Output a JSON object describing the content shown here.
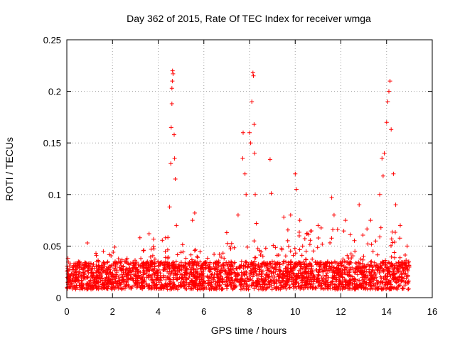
{
  "chart_data": {
    "type": "scatter",
    "title": "Day 362 of 2015, Rate Of TEC Index for receiver wmga",
    "xlabel": "GPS time / hours",
    "ylabel": "ROTI / TECUs",
    "xlim": [
      0,
      16
    ],
    "ylim": [
      0,
      0.25
    ],
    "grid": true,
    "marker": "+",
    "marker_color": "#ff0000",
    "x_ticks": [
      {
        "value": 0,
        "label": "0"
      },
      {
        "value": 2,
        "label": "2"
      },
      {
        "value": 4,
        "label": "4"
      },
      {
        "value": 6,
        "label": "6"
      },
      {
        "value": 8,
        "label": "8"
      },
      {
        "value": 10,
        "label": "10"
      },
      {
        "value": 12,
        "label": "12"
      },
      {
        "value": 14,
        "label": "14"
      },
      {
        "value": 16,
        "label": "16"
      }
    ],
    "y_ticks": [
      {
        "value": 0,
        "label": "0"
      },
      {
        "value": 0.05,
        "label": "0.05"
      },
      {
        "value": 0.1,
        "label": "0.1"
      },
      {
        "value": 0.15,
        "label": "0.15"
      },
      {
        "value": 0.2,
        "label": "0.2"
      },
      {
        "value": 0.25,
        "label": "0.25"
      }
    ],
    "x_range_data": [
      0,
      15.0
    ],
    "baseline_band": [
      0.008,
      0.035
    ],
    "series": [
      {
        "name": "ROTI",
        "points": [
          [
            0.05,
            0.038
          ],
          [
            0.9,
            0.053
          ],
          [
            1.6,
            0.045
          ],
          [
            2.1,
            0.049
          ],
          [
            3.2,
            0.058
          ],
          [
            3.6,
            0.062
          ],
          [
            4.5,
            0.088
          ],
          [
            4.55,
            0.13
          ],
          [
            4.57,
            0.165
          ],
          [
            4.6,
            0.188
          ],
          [
            4.6,
            0.203
          ],
          [
            4.62,
            0.21
          ],
          [
            4.63,
            0.22
          ],
          [
            4.65,
            0.217
          ],
          [
            4.7,
            0.158
          ],
          [
            4.72,
            0.135
          ],
          [
            4.75,
            0.115
          ],
          [
            4.8,
            0.07
          ],
          [
            5.5,
            0.075
          ],
          [
            5.6,
            0.082
          ],
          [
            7.0,
            0.063
          ],
          [
            7.5,
            0.08
          ],
          [
            7.7,
            0.135
          ],
          [
            7.72,
            0.16
          ],
          [
            7.8,
            0.12
          ],
          [
            7.85,
            0.1
          ],
          [
            8.0,
            0.16
          ],
          [
            8.05,
            0.15
          ],
          [
            8.1,
            0.19
          ],
          [
            8.15,
            0.218
          ],
          [
            8.17,
            0.215
          ],
          [
            8.2,
            0.168
          ],
          [
            8.22,
            0.14
          ],
          [
            8.25,
            0.1
          ],
          [
            8.3,
            0.072
          ],
          [
            8.9,
            0.134
          ],
          [
            8.95,
            0.101
          ],
          [
            9.5,
            0.078
          ],
          [
            9.8,
            0.08
          ],
          [
            10.0,
            0.12
          ],
          [
            10.05,
            0.105
          ],
          [
            10.2,
            0.075
          ],
          [
            10.5,
            0.062
          ],
          [
            11.0,
            0.07
          ],
          [
            11.6,
            0.097
          ],
          [
            11.7,
            0.08
          ],
          [
            12.2,
            0.075
          ],
          [
            12.8,
            0.09
          ],
          [
            13.3,
            0.075
          ],
          [
            13.7,
            0.1
          ],
          [
            13.8,
            0.135
          ],
          [
            13.85,
            0.118
          ],
          [
            13.9,
            0.14
          ],
          [
            14.0,
            0.17
          ],
          [
            14.05,
            0.19
          ],
          [
            14.1,
            0.2
          ],
          [
            14.15,
            0.21
          ],
          [
            14.2,
            0.163
          ],
          [
            14.3,
            0.12
          ],
          [
            14.4,
            0.09
          ],
          [
            14.6,
            0.07
          ],
          [
            14.9,
            0.05
          ]
        ]
      }
    ],
    "envelope": [
      [
        0.0,
        0.042
      ],
      [
        0.5,
        0.035
      ],
      [
        1.0,
        0.048
      ],
      [
        1.5,
        0.04
      ],
      [
        2.0,
        0.045
      ],
      [
        2.5,
        0.04
      ],
      [
        3.0,
        0.05
      ],
      [
        3.5,
        0.055
      ],
      [
        4.0,
        0.058
      ],
      [
        4.5,
        0.06
      ],
      [
        5.0,
        0.058
      ],
      [
        5.5,
        0.068
      ],
      [
        6.0,
        0.05
      ],
      [
        6.5,
        0.045
      ],
      [
        7.0,
        0.055
      ],
      [
        7.5,
        0.055
      ],
      [
        8.0,
        0.06
      ],
      [
        8.5,
        0.05
      ],
      [
        9.0,
        0.05
      ],
      [
        9.5,
        0.065
      ],
      [
        10.0,
        0.07
      ],
      [
        10.5,
        0.065
      ],
      [
        11.0,
        0.065
      ],
      [
        11.5,
        0.075
      ],
      [
        12.0,
        0.068
      ],
      [
        12.5,
        0.06
      ],
      [
        13.0,
        0.07
      ],
      [
        13.5,
        0.068
      ],
      [
        14.0,
        0.075
      ],
      [
        14.5,
        0.065
      ],
      [
        15.0,
        0.04
      ]
    ]
  }
}
